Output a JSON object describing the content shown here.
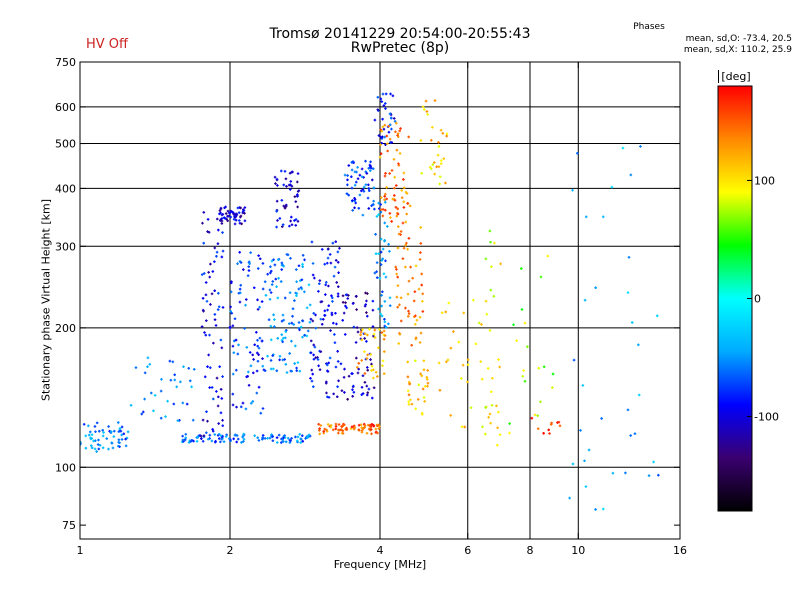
{
  "chart_data": {
    "type": "scatter",
    "title": "Tromsø 20141229 20:54:00-20:55:43",
    "subtitle": "RwPretec (8p)",
    "status": "HV Off",
    "legend": {
      "title": "Phases",
      "line1": "mean, sd,O: -73.4, 20.5",
      "line2": "mean, sd,X: 110.2, 25.9"
    },
    "xlabel": "Frequency [MHz]",
    "ylabel": "Stationary phase Virtual Height [km]",
    "x_scale": "log",
    "y_scale": "log",
    "xlim": [
      1,
      16
    ],
    "ylim": [
      70,
      750
    ],
    "x_ticks": [
      1,
      2,
      4,
      6,
      8,
      10,
      16
    ],
    "y_ticks": [
      75,
      100,
      200,
      300,
      400,
      500,
      600,
      750
    ],
    "grid_x": [
      2,
      4,
      6,
      8,
      10
    ],
    "grid_y": [
      100,
      200,
      300,
      400,
      500,
      600
    ],
    "grid": true,
    "colorbar": {
      "label": "[deg]",
      "min": -180,
      "max": 180,
      "ticks": [
        100,
        0,
        -100
      ],
      "colors": [
        "#000000",
        "#3a0070",
        "#0000ff",
        "#00aaff",
        "#00ffff",
        "#00ff00",
        "#ffff00",
        "#ff8800",
        "#ff0000"
      ]
    },
    "clusters": [
      {
        "x": [
          1.0,
          1.25
        ],
        "y": [
          108,
          125
        ],
        "phase": -55,
        "n": 60
      },
      {
        "x": [
          1.25,
          1.7
        ],
        "y": [
          125,
          175
        ],
        "phase": -55,
        "n": 35
      },
      {
        "x": [
          1.6,
          2.9
        ],
        "y": [
          113,
          118
        ],
        "phase": -60,
        "n": 110
      },
      {
        "x": [
          1.75,
          1.95
        ],
        "y": [
          115,
          390
        ],
        "phase": -95,
        "n": 75
      },
      {
        "x": [
          1.9,
          2.15
        ],
        "y": [
          335,
          365
        ],
        "phase": -105,
        "n": 55
      },
      {
        "x": [
          2.0,
          2.35
        ],
        "y": [
          130,
          300
        ],
        "phase": -75,
        "n": 85
      },
      {
        "x": [
          2.35,
          2.9
        ],
        "y": [
          160,
          290
        ],
        "phase": -55,
        "n": 110
      },
      {
        "x": [
          2.45,
          2.75
        ],
        "y": [
          330,
          440
        ],
        "phase": -100,
        "n": 50
      },
      {
        "x": [
          2.9,
          3.35
        ],
        "y": [
          140,
          310
        ],
        "phase": -90,
        "n": 95
      },
      {
        "x": [
          3.0,
          3.5
        ],
        "y": [
          118,
          124
        ],
        "phase": 140,
        "n": 35
      },
      {
        "x": [
          3.35,
          3.9
        ],
        "y": [
          140,
          240
        ],
        "phase": -110,
        "n": 70
      },
      {
        "x": [
          3.4,
          3.9
        ],
        "y": [
          350,
          460
        ],
        "phase": -75,
        "n": 65
      },
      {
        "x": [
          3.5,
          4.0
        ],
        "y": [
          118,
          124
        ],
        "phase": 150,
        "n": 40
      },
      {
        "x": [
          3.6,
          4.1
        ],
        "y": [
          155,
          200
        ],
        "phase": 120,
        "n": 35
      },
      {
        "x": [
          3.9,
          4.2
        ],
        "y": [
          200,
          380
        ],
        "phase": -50,
        "n": 45
      },
      {
        "x": [
          3.9,
          4.3
        ],
        "y": [
          490,
          650
        ],
        "phase": -85,
        "n": 35
      },
      {
        "x": [
          4.0,
          4.6
        ],
        "y": [
          330,
          560
        ],
        "phase": 140,
        "n": 70
      },
      {
        "x": [
          4.3,
          4.9
        ],
        "y": [
          180,
          330
        ],
        "phase": 135,
        "n": 55
      },
      {
        "x": [
          4.5,
          5.0
        ],
        "y": [
          130,
          170
        ],
        "phase": 110,
        "n": 30
      },
      {
        "x": [
          4.8,
          5.5
        ],
        "y": [
          400,
          620
        ],
        "phase": 110,
        "n": 30
      },
      {
        "x": [
          5.2,
          6.4
        ],
        "y": [
          120,
          230
        ],
        "phase": 105,
        "n": 25
      },
      {
        "x": [
          6.4,
          7.0
        ],
        "y": [
          110,
          330
        ],
        "phase": 90,
        "n": 30
      },
      {
        "x": [
          7.2,
          9.0
        ],
        "y": [
          110,
          300
        ],
        "phase": 70,
        "n": 20
      },
      {
        "x": [
          8.0,
          9.5
        ],
        "y": [
          115,
          130
        ],
        "phase": 170,
        "n": 10
      },
      {
        "x": [
          9.5,
          14.5
        ],
        "y": [
          80,
          500
        ],
        "phase": -40,
        "n": 35
      }
    ]
  }
}
